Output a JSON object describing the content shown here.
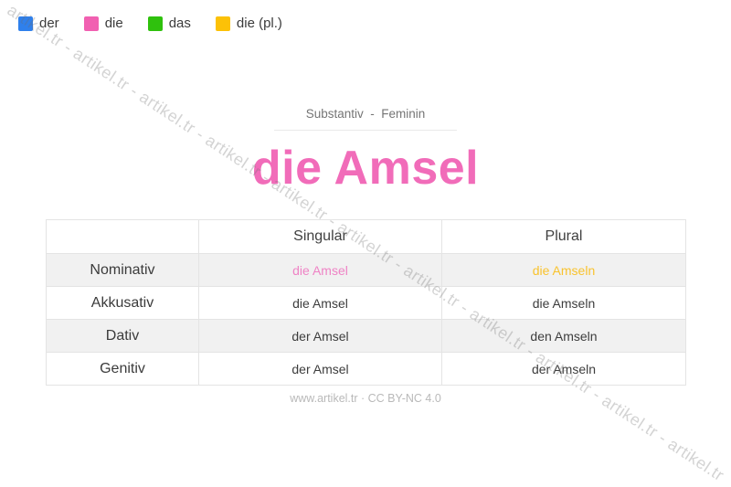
{
  "legend": {
    "items": [
      {
        "label": "der",
        "color": "#2f80ec"
      },
      {
        "label": "die",
        "color": "#f160b1"
      },
      {
        "label": "das",
        "color": "#2fc10d"
      },
      {
        "label": "die (pl.)",
        "color": "#fcc107"
      }
    ]
  },
  "header": {
    "subtitle": "Substantiv  -  Feminin",
    "title": "die Amsel",
    "title_color": "#f16cb9"
  },
  "table": {
    "columns": [
      "",
      "Singular",
      "Plural"
    ],
    "rows": [
      {
        "case": "Nominativ",
        "singular": "die Amsel",
        "plural": "die Amseln",
        "singular_color": "#ef83c5",
        "plural_color": "#f9c32e"
      },
      {
        "case": "Akkusativ",
        "singular": "die Amsel",
        "plural": "die Amseln"
      },
      {
        "case": "Dativ",
        "singular": "der Amsel",
        "plural": "den Amseln"
      },
      {
        "case": "Genitiv",
        "singular": "der Amsel",
        "plural": "der Amseln"
      }
    ]
  },
  "footer": {
    "credit": "www.artikel.tr · CC BY-NC 4.0"
  },
  "watermark": {
    "text": "artikel.tr - artikel.tr - artikel.tr - artikel.tr - artikel.tr - artikel.tr - artikel.tr - artikel.tr - artikel.tr - artikel.tr - artikel.tr"
  },
  "theme": {
    "row_stripe": "#f1f1f1",
    "table_border": "#e4e4e4",
    "subtitle_gray": "#757575",
    "footer_gray": "#b9b9b9"
  }
}
